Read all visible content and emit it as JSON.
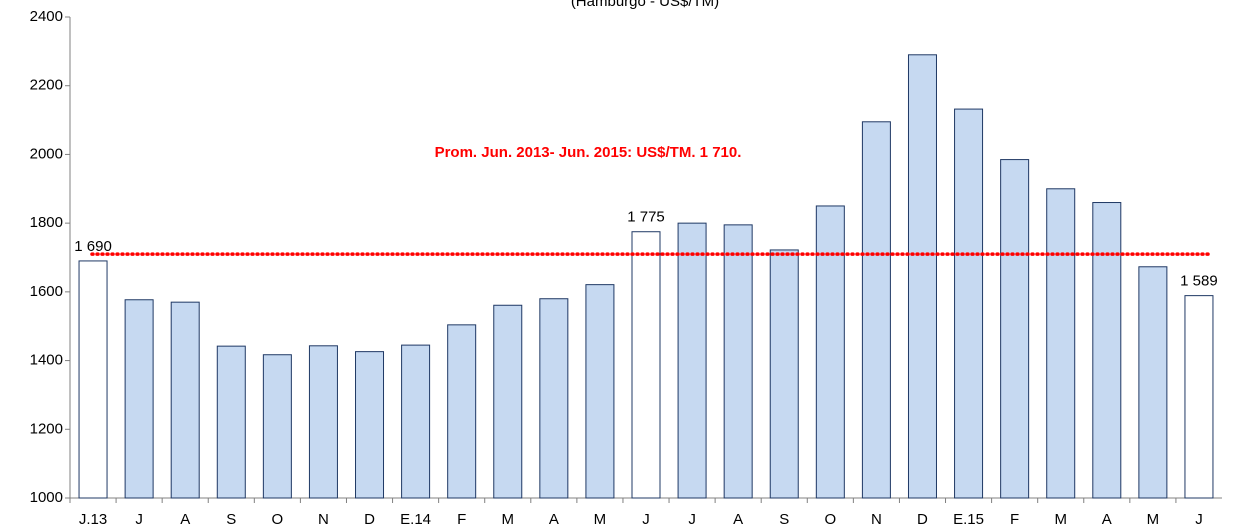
{
  "chart_data": {
    "type": "bar",
    "subtitle": "(Hamburgo - US$/TM)",
    "categories": [
      "J.13",
      "J",
      "A",
      "S",
      "O",
      "N",
      "D",
      "E.14",
      "F",
      "M",
      "A",
      "M",
      "J",
      "J",
      "A",
      "S",
      "O",
      "N",
      "D",
      "E.15",
      "F",
      "M",
      "A",
      "M",
      "J"
    ],
    "values": [
      1690,
      1577,
      1570,
      1442,
      1417,
      1443,
      1426,
      1445,
      1504,
      1561,
      1580,
      1621,
      1775,
      1800,
      1795,
      1722,
      1850,
      2095,
      2290,
      2132,
      1985,
      1900,
      1860,
      1673,
      1589
    ],
    "value_labels": [
      "1 690",
      null,
      null,
      null,
      null,
      null,
      null,
      null,
      null,
      null,
      null,
      null,
      "1 775",
      null,
      null,
      null,
      null,
      null,
      null,
      null,
      null,
      null,
      null,
      null,
      "1 589"
    ],
    "colors": [
      "#ffffff",
      "#c6d9f1",
      "#c6d9f1",
      "#c6d9f1",
      "#c6d9f1",
      "#c6d9f1",
      "#c6d9f1",
      "#c6d9f1",
      "#c6d9f1",
      "#c6d9f1",
      "#c6d9f1",
      "#c6d9f1",
      "#ffffff",
      "#c6d9f1",
      "#c6d9f1",
      "#c6d9f1",
      "#c6d9f1",
      "#c6d9f1",
      "#c6d9f1",
      "#c6d9f1",
      "#c6d9f1",
      "#c6d9f1",
      "#c6d9f1",
      "#c6d9f1",
      "#ffffff"
    ],
    "border_color": "#1f3864",
    "ylim": [
      1000,
      2400
    ],
    "yticks": [
      1000,
      1200,
      1400,
      1600,
      1800,
      2000,
      2200,
      2400
    ],
    "reference_line": {
      "value": 1710,
      "label": "Prom. Jun. 2013- Jun. 2015: US$/TM. 1 710.",
      "color": "#ff0000"
    }
  }
}
